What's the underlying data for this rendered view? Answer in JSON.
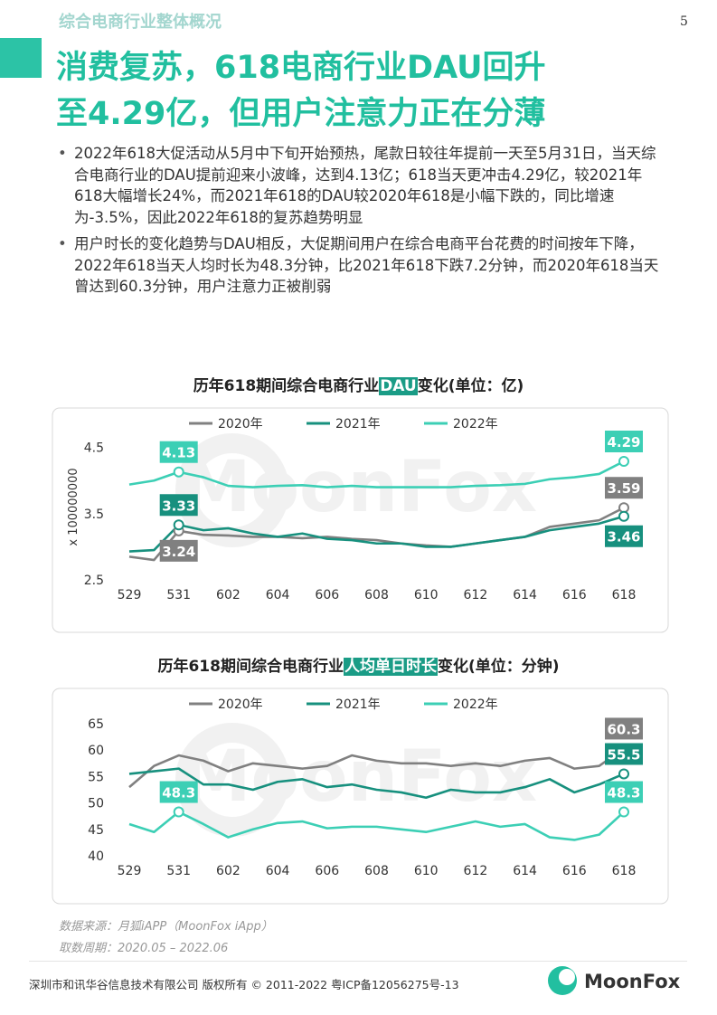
{
  "header": {
    "section": "综合电商行业整体概况",
    "page": "5"
  },
  "title": [
    "消费复苏，618电商行业DAU回升",
    "至4.29亿，但用户注意力正在分薄"
  ],
  "bullets": [
    "2022年618大促活动从5月中下旬开始预热，尾款日较往年提前一天至5月31日，当天综合电商行业的DAU提前迎来小波峰，达到4.13亿；618当天更冲击4.29亿，较2021年618大幅增长24%，而2021年618的DAU较2020年618是小幅下跌的，同比增速为-3.5%，因此2022年618的复苏趋势明显",
    "用户时长的变化趋势与DAU相反，大促期间用户在综合电商平台花费的时间按年下降，2022年618当天人均时长为48.3分钟，比2021年618下跌7.2分钟，而2020年618当天曾达到60.3分钟，用户注意力正被削弱"
  ],
  "watermark": "MoonFox",
  "chart_data": [
    {
      "type": "line",
      "title": [
        "历年618期间综合电商行业",
        "DAU",
        "变化(单位：亿)"
      ],
      "y_label": "x 100000000",
      "categories": [
        "529",
        null,
        "531",
        null,
        "602",
        null,
        "604",
        null,
        "606",
        null,
        "608",
        null,
        "610",
        null,
        "612",
        null,
        "614",
        null,
        "616",
        null,
        "618"
      ],
      "ylim": [
        2.5,
        4.7
      ],
      "yticks": [
        2.5,
        3.5,
        4.5
      ],
      "grid": false,
      "series": [
        {
          "name": "2020年",
          "color": "#808080",
          "values": [
            2.85,
            2.8,
            3.24,
            3.18,
            3.17,
            3.15,
            3.15,
            3.13,
            3.15,
            3.12,
            3.1,
            3.05,
            3.02,
            3.0,
            3.05,
            3.1,
            3.15,
            3.3,
            3.35,
            3.4,
            3.59
          ],
          "value_labels": [
            null,
            null,
            "3.24",
            null,
            null,
            null,
            null,
            null,
            null,
            null,
            null,
            null,
            null,
            null,
            null,
            null,
            null,
            null,
            null,
            null,
            "3.59"
          ]
        },
        {
          "name": "2021年",
          "color": "#17907e",
          "values": [
            2.93,
            2.95,
            3.33,
            3.25,
            3.28,
            3.2,
            3.15,
            3.2,
            3.12,
            3.1,
            3.05,
            3.05,
            3.0,
            3.0,
            3.05,
            3.1,
            3.15,
            3.25,
            3.3,
            3.35,
            3.46
          ],
          "value_labels": [
            null,
            null,
            "3.33",
            null,
            null,
            null,
            null,
            null,
            null,
            null,
            null,
            null,
            null,
            null,
            null,
            null,
            null,
            null,
            null,
            null,
            "3.46"
          ]
        },
        {
          "name": "2022年",
          "color": "#3ccfb5",
          "values": [
            3.94,
            4.0,
            4.13,
            4.05,
            3.92,
            3.9,
            3.92,
            3.93,
            3.9,
            3.92,
            3.9,
            3.9,
            3.9,
            3.9,
            3.92,
            3.93,
            3.95,
            4.02,
            4.05,
            4.1,
            4.29
          ],
          "value_labels": [
            null,
            null,
            "4.13",
            null,
            null,
            null,
            null,
            null,
            null,
            null,
            null,
            null,
            null,
            null,
            null,
            null,
            null,
            null,
            null,
            null,
            "4.29"
          ]
        }
      ]
    },
    {
      "type": "line",
      "title": [
        "历年618期间综合电商行业",
        "人均单日时长",
        "变化(单位：分钟)"
      ],
      "categories": [
        "529",
        null,
        "531",
        null,
        "602",
        null,
        "604",
        null,
        "606",
        null,
        "608",
        null,
        "610",
        null,
        "612",
        null,
        "614",
        null,
        "616",
        null,
        "618"
      ],
      "ylim": [
        40,
        65
      ],
      "yticks": [
        40,
        45,
        50,
        55,
        60,
        65
      ],
      "grid": false,
      "series": [
        {
          "name": "2020年",
          "color": "#808080",
          "values": [
            53,
            57,
            59,
            58,
            56,
            57.5,
            57,
            56.5,
            57,
            59,
            58,
            57.5,
            57.5,
            57,
            57.5,
            57,
            58,
            58.5,
            56.5,
            57,
            60.3
          ],
          "value_labels": [
            null,
            null,
            null,
            null,
            null,
            null,
            null,
            null,
            null,
            null,
            null,
            null,
            null,
            null,
            null,
            null,
            null,
            null,
            null,
            null,
            "60.3"
          ]
        },
        {
          "name": "2021年",
          "color": "#17907e",
          "values": [
            55.5,
            56,
            56.5,
            53.5,
            53.5,
            52.5,
            54,
            54.5,
            53,
            53.5,
            52.5,
            52,
            51,
            52.5,
            52,
            52,
            53,
            54.5,
            52,
            53.5,
            55.5
          ],
          "value_labels": [
            null,
            null,
            null,
            null,
            null,
            null,
            null,
            null,
            null,
            null,
            null,
            null,
            null,
            null,
            null,
            null,
            null,
            null,
            null,
            null,
            "55.5"
          ]
        },
        {
          "name": "2022年",
          "color": "#3ccfb5",
          "values": [
            46,
            44.5,
            48.3,
            46,
            43.5,
            45,
            46.2,
            46.5,
            45.2,
            45.5,
            45.5,
            45,
            44.5,
            45.5,
            46.5,
            45.5,
            46,
            43.5,
            43,
            44,
            48.3
          ],
          "value_labels": [
            null,
            null,
            "48.3",
            null,
            null,
            null,
            null,
            null,
            null,
            null,
            null,
            null,
            null,
            null,
            null,
            null,
            null,
            null,
            null,
            null,
            "48.3"
          ]
        }
      ]
    }
  ],
  "source": [
    "数据来源：月狐iAPP（MoonFox iApp）",
    "取数周期：2020.05 – 2022.06"
  ],
  "footer": {
    "copyright": "深圳市和讯华谷信息技术有限公司 版权所有 © 2011-2022 粤ICP备12056275号-13",
    "logo": "MoonFox"
  }
}
